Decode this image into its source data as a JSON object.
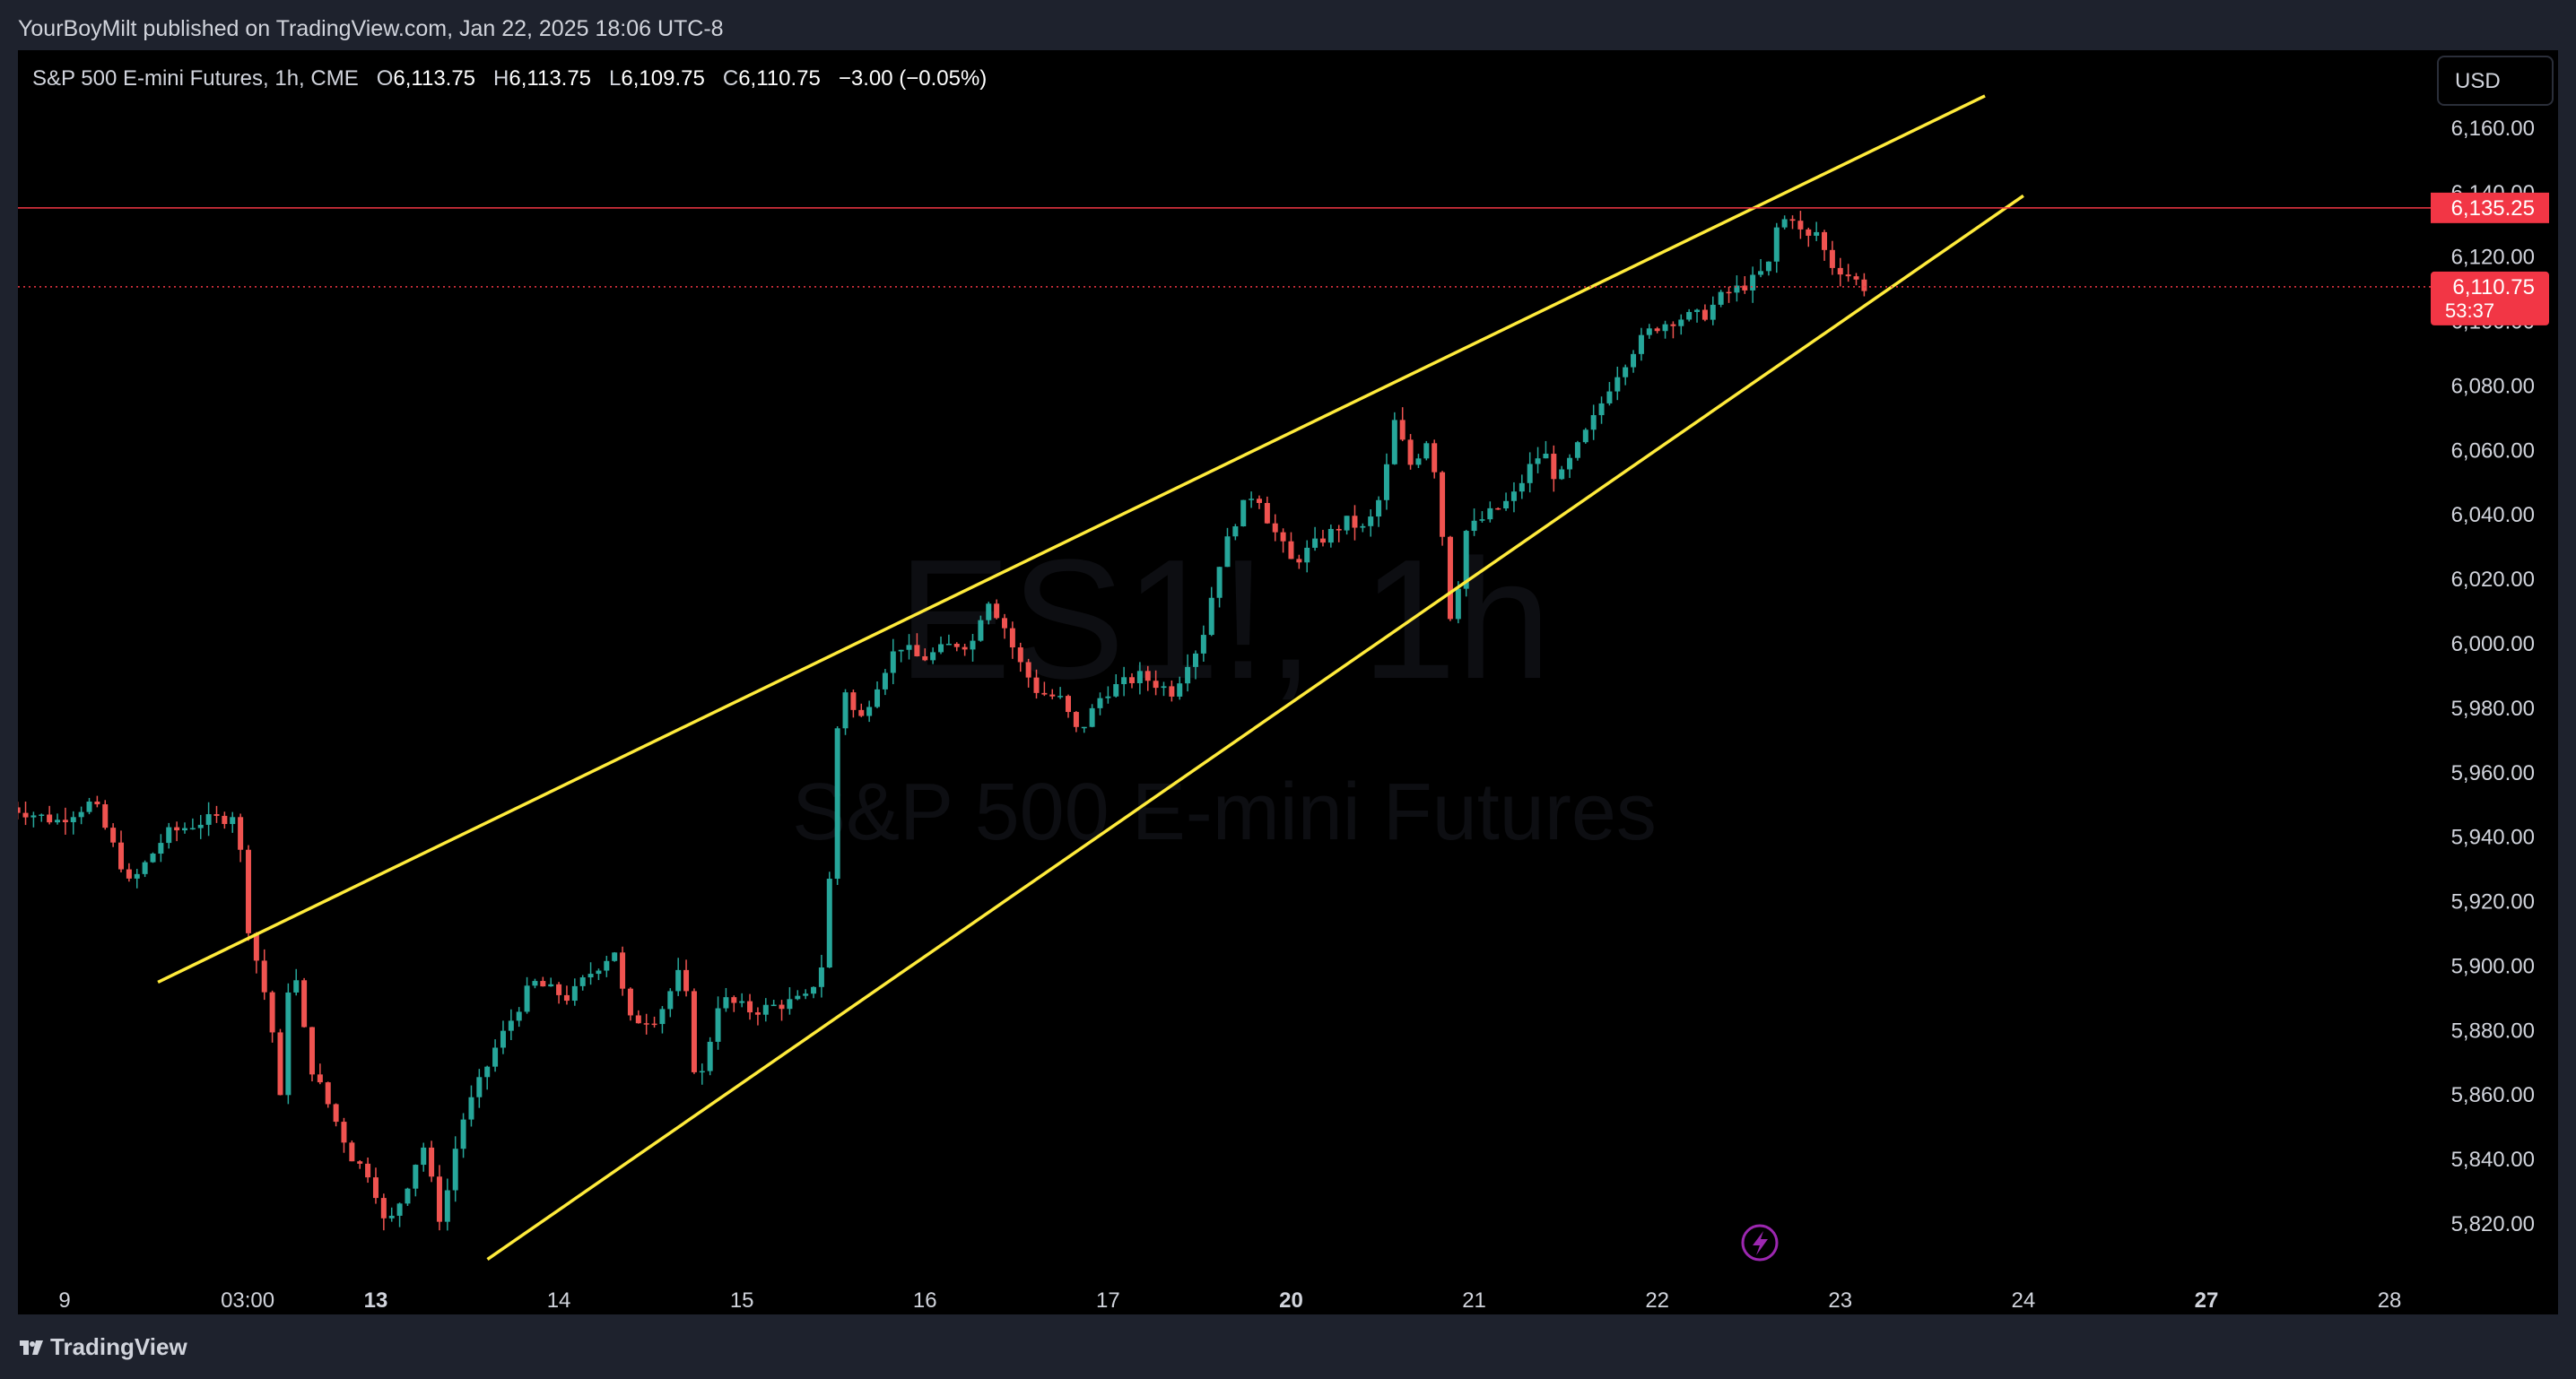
{
  "header": {
    "publish_line": "YourBoyMilt published on TradingView.com, Jan 22, 2025 18:06 UTC-8"
  },
  "legend": {
    "symbol": "S&P 500 E-mini Futures, 1h, CME",
    "open_label": "O",
    "open": "6,113.75",
    "high_label": "H",
    "high": "6,113.75",
    "low_label": "L",
    "low": "6,109.75",
    "close_label": "C",
    "close": "6,110.75",
    "change": "−3.00 (−0.05%)"
  },
  "currency_button": "USD",
  "watermark": {
    "ticker": "ES1!, 1h",
    "name": "S&P 500 E-mini Futures"
  },
  "colors": {
    "up": "#26a69a",
    "down": "#ef5350",
    "trendline": "#ffeb3b",
    "level": "#f23645",
    "background": "#000000"
  },
  "chart_data": {
    "type": "candlestick",
    "y_axis": {
      "ticks": [
        5820,
        5840,
        5860,
        5880,
        5900,
        5920,
        5940,
        5960,
        5980,
        6000,
        6020,
        6040,
        6060,
        6080,
        6100,
        6120,
        6140,
        6160
      ],
      "tick_labels": [
        "5,820.00",
        "5,840.00",
        "5,860.00",
        "5,880.00",
        "5,900.00",
        "5,920.00",
        "5,940.00",
        "5,960.00",
        "5,980.00",
        "6,000.00",
        "6,020.00",
        "6,040.00",
        "6,060.00",
        "6,080.00",
        "6,100.00",
        "6,120.00",
        "6,140.00",
        "6,160.00"
      ],
      "range": [
        5810,
        6180
      ]
    },
    "x_axis": {
      "labels": [
        {
          "t": 0.0,
          "text": "9",
          "bold": false
        },
        {
          "t": 1.0,
          "text": "03:00",
          "bold": false
        },
        {
          "t": 1.7,
          "text": "13",
          "bold": true
        },
        {
          "t": 2.7,
          "text": "14",
          "bold": false
        },
        {
          "t": 3.7,
          "text": "15",
          "bold": false
        },
        {
          "t": 4.7,
          "text": "16",
          "bold": false
        },
        {
          "t": 5.7,
          "text": "17",
          "bold": false
        },
        {
          "t": 6.7,
          "text": "20",
          "bold": true
        },
        {
          "t": 7.7,
          "text": "21",
          "bold": false
        },
        {
          "t": 8.7,
          "text": "22",
          "bold": false
        },
        {
          "t": 9.7,
          "text": "23",
          "bold": false
        },
        {
          "t": 10.7,
          "text": "24",
          "bold": false
        },
        {
          "t": 11.7,
          "text": "27",
          "bold": true
        },
        {
          "t": 12.7,
          "text": "28",
          "bold": false
        }
      ],
      "range": [
        -0.25,
        13.25
      ]
    },
    "price_line": {
      "value": 6110.75,
      "label": "6,110.75",
      "countdown": "53:37"
    },
    "horizontal_level": {
      "value": 6135.25,
      "label": "6,135.25"
    },
    "trendlines": [
      {
        "from": [
          0.51,
          5895
        ],
        "to": [
          10.49,
          6170
        ]
      },
      {
        "from": [
          2.31,
          5809
        ],
        "to": [
          10.7,
          6139
        ]
      }
    ],
    "series_anchors": [
      [
        -0.3,
        5950
      ],
      [
        0.0,
        5945
      ],
      [
        0.2,
        5951
      ],
      [
        0.35,
        5932
      ],
      [
        0.4,
        5925
      ],
      [
        0.6,
        5941
      ],
      [
        0.8,
        5945
      ],
      [
        0.92,
        5946
      ],
      [
        0.98,
        5948
      ],
      [
        1.05,
        5911
      ],
      [
        1.1,
        5900
      ],
      [
        1.17,
        5884
      ],
      [
        1.22,
        5857
      ],
      [
        1.28,
        5905
      ],
      [
        1.38,
        5870
      ],
      [
        1.5,
        5855
      ],
      [
        1.62,
        5840
      ],
      [
        1.72,
        5835
      ],
      [
        1.8,
        5818
      ],
      [
        1.9,
        5830
      ],
      [
        2.0,
        5845
      ],
      [
        2.1,
        5820
      ],
      [
        2.2,
        5850
      ],
      [
        2.4,
        5875
      ],
      [
        2.6,
        5895
      ],
      [
        2.8,
        5890
      ],
      [
        2.9,
        5897
      ],
      [
        3.05,
        5905
      ],
      [
        3.12,
        5883
      ],
      [
        3.28,
        5884
      ],
      [
        3.42,
        5900
      ],
      [
        3.5,
        5860
      ],
      [
        3.62,
        5890
      ],
      [
        3.8,
        5886
      ],
      [
        4.1,
        5890
      ],
      [
        4.2,
        5903
      ],
      [
        4.28,
        5990
      ],
      [
        4.38,
        5975
      ],
      [
        4.5,
        5990
      ],
      [
        4.6,
        6000
      ],
      [
        4.72,
        5995
      ],
      [
        4.9,
        6000
      ],
      [
        5.0,
        6000
      ],
      [
        5.08,
        6015
      ],
      [
        5.18,
        6005
      ],
      [
        5.25,
        5995
      ],
      [
        5.36,
        5985
      ],
      [
        5.48,
        5983
      ],
      [
        5.58,
        5972
      ],
      [
        5.72,
        5985
      ],
      [
        5.92,
        5990
      ],
      [
        6.1,
        5985
      ],
      [
        6.18,
        5995
      ],
      [
        6.25,
        6000
      ],
      [
        6.35,
        6025
      ],
      [
        6.45,
        6040
      ],
      [
        6.55,
        6048
      ],
      [
        6.62,
        6038
      ],
      [
        6.75,
        6025
      ],
      [
        6.9,
        6032
      ],
      [
        7.05,
        6038
      ],
      [
        7.15,
        6035
      ],
      [
        7.25,
        6048
      ],
      [
        7.3,
        6070
      ],
      [
        7.4,
        6055
      ],
      [
        7.5,
        6065
      ],
      [
        7.55,
        6045
      ],
      [
        7.62,
        6005
      ],
      [
        7.7,
        6035
      ],
      [
        7.82,
        6040
      ],
      [
        7.95,
        6045
      ],
      [
        8.05,
        6055
      ],
      [
        8.12,
        6060
      ],
      [
        8.2,
        6050
      ],
      [
        8.28,
        6058
      ],
      [
        8.4,
        6070
      ],
      [
        8.5,
        6082
      ],
      [
        8.62,
        6092
      ],
      [
        8.72,
        6098
      ],
      [
        8.85,
        6101
      ],
      [
        9.0,
        6102
      ],
      [
        9.1,
        6108
      ],
      [
        9.25,
        6112
      ],
      [
        9.35,
        6117
      ],
      [
        9.4,
        6130
      ],
      [
        9.48,
        6133
      ],
      [
        9.55,
        6125
      ],
      [
        9.62,
        6128
      ],
      [
        9.68,
        6118
      ],
      [
        9.75,
        6116
      ],
      [
        9.82,
        6113
      ],
      [
        9.87,
        6110.75
      ]
    ],
    "last_candle_time": 9.87
  }
}
